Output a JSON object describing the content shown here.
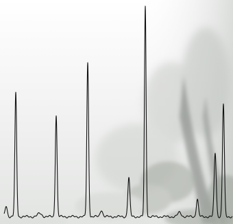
{
  "background": {
    "description_colors": {
      "fog": "#f4f4f4",
      "forest_dark": "#8f9390",
      "forest_mid": "#b9bdb9",
      "foliage": "#aab0a6"
    }
  },
  "chart_data": {
    "type": "line",
    "title": "",
    "xlabel": "",
    "ylabel": "",
    "grid": false,
    "legend": "none",
    "line_color": "#111111",
    "xlim": [
      0,
      340
    ],
    "ylim": [
      0,
      100
    ],
    "baseline": 1.8,
    "peaks": [
      {
        "x": 9,
        "height": 5,
        "width": 1.6
      },
      {
        "x": 23,
        "height": 57,
        "width": 1.3
      },
      {
        "x": 58,
        "height": 1.5,
        "width": 3
      },
      {
        "x": 82,
        "height": 47,
        "width": 1.3
      },
      {
        "x": 128,
        "height": 71,
        "width": 1.3
      },
      {
        "x": 148,
        "height": 3.2,
        "width": 1.8
      },
      {
        "x": 188,
        "height": 18,
        "width": 1.5
      },
      {
        "x": 212,
        "height": 97,
        "width": 1.2
      },
      {
        "x": 262,
        "height": 2,
        "width": 2.5
      },
      {
        "x": 288,
        "height": 8.2,
        "width": 1.5
      },
      {
        "x": 314,
        "height": 29.5,
        "width": 1.5
      },
      {
        "x": 326,
        "height": 52,
        "width": 1.4
      }
    ]
  }
}
